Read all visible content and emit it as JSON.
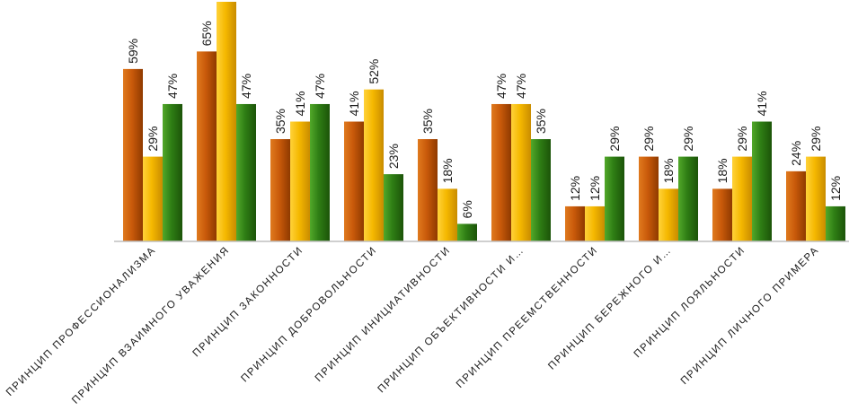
{
  "chart_data": {
    "type": "bar",
    "categories": [
      "ПРИНЦИП ПРОФЕССИОНАЛИЗМА",
      "ПРИНЦИП ВЗАИМНОГО УВАЖЕНИЯ",
      "ПРИНЦИП ЗАКОННОСТИ",
      "ПРИНЦИП ДОБРОВОЛЬНОСТИ",
      "ПРИНЦИП ИНИЦИАТИВНОСТИ",
      "ПРИНЦИП ОБЪЕКТИВНОСТИ И…",
      "ПРИНЦИП ПРЕЕМСТВЕННОСТИ",
      "ПРИНЦИП БЕРЕЖНОГО И…",
      "ПРИНЦИП ЛОЯЛЬНОСТИ",
      "ПРИНЦИП ЛИЧНОГО ПРИМЕРА"
    ],
    "series": [
      {
        "values": [
          59,
          65,
          35,
          41,
          35,
          47,
          12,
          29,
          18,
          24
        ],
        "color": "#c95a0a"
      },
      {
        "values": [
          29,
          82,
          41,
          52,
          18,
          47,
          12,
          18,
          29,
          29
        ],
        "color": "#f5b800"
      },
      {
        "values": [
          47,
          47,
          47,
          23,
          6,
          35,
          29,
          29,
          41,
          12
        ],
        "color": "#2e7d14"
      }
    ],
    "data_labels": [
      [
        "59%",
        "65%",
        "35%",
        "41%",
        "35%",
        "47%",
        "12%",
        "29%",
        "18%",
        "24%"
      ],
      [
        "29%",
        "",
        "41%",
        "52%",
        "18%",
        "47%",
        "12%",
        "18%",
        "29%",
        "29%"
      ],
      [
        "47%",
        "47%",
        "47%",
        "23%",
        "6%",
        "35%",
        "29%",
        "29%",
        "41%",
        "12%"
      ]
    ],
    "ylim": [
      0,
      82
    ],
    "grid": false,
    "legend": "none",
    "value_unit": "%"
  }
}
